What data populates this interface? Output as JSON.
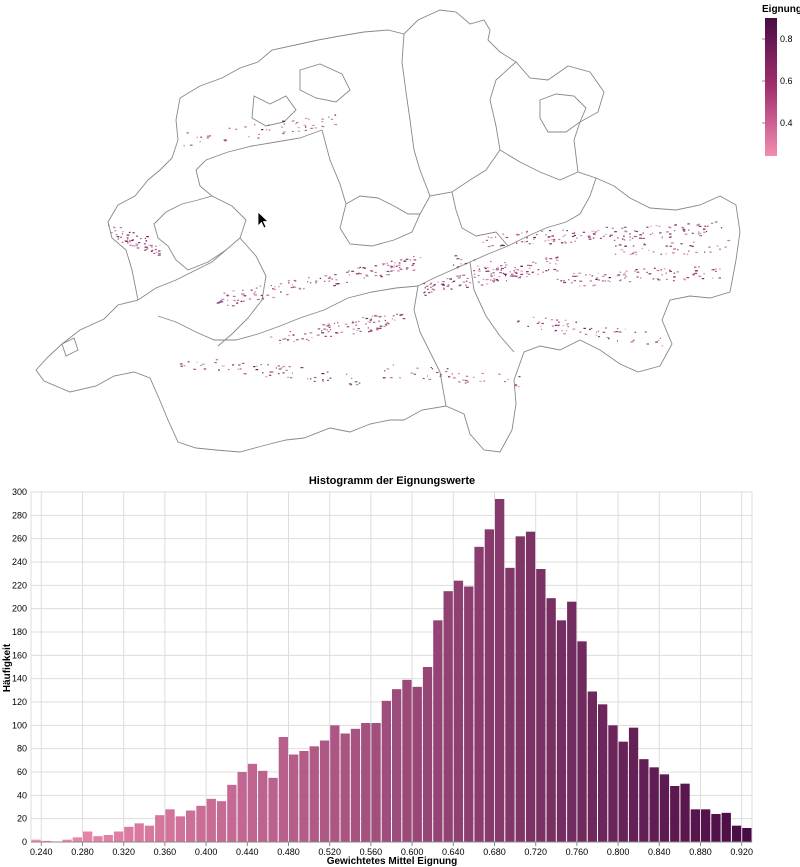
{
  "legend": {
    "title": "Eignung",
    "ticks": [
      "0.8",
      "0.6",
      "0.4"
    ],
    "color_low": "#f28cb0",
    "color_high": "#4a0c45",
    "range": [
      0.24,
      0.92
    ]
  },
  "map": {
    "boundary_color": "#888888",
    "pixel_colors": [
      "#7a1d60",
      "#a2306e",
      "#c8618e",
      "#5a1252"
    ]
  },
  "cursor": {
    "icon": "arrow-cursor-icon"
  },
  "chart_data": {
    "type": "bar",
    "title": "Histogramm der Eignungswerte",
    "xlabel": "Gewichtetes Mittel Eignung",
    "ylabel": "Häufigkeit",
    "bin_start": 0.23,
    "bin_width": 0.01,
    "values": [
      2,
      1,
      0,
      2,
      4,
      9,
      5,
      6,
      9,
      13,
      16,
      14,
      23,
      28,
      22,
      27,
      31,
      37,
      35,
      49,
      60,
      67,
      61,
      55,
      90,
      75,
      78,
      82,
      87,
      100,
      93,
      97,
      102,
      102,
      121,
      131,
      139,
      133,
      150,
      190,
      215,
      224,
      219,
      253,
      268,
      294,
      235,
      262,
      266,
      234,
      209,
      190,
      206,
      172,
      129,
      118,
      100,
      86,
      98,
      71,
      64,
      58,
      48,
      50,
      28,
      28,
      24,
      25,
      14,
      12
    ],
    "ylim": [
      0,
      300
    ],
    "yticks": [
      "0",
      "20",
      "40",
      "60",
      "80",
      "100",
      "120",
      "140",
      "160",
      "180",
      "200",
      "220",
      "240",
      "260",
      "280",
      "300"
    ],
    "xticks": [
      "0.240",
      "0.280",
      "0.320",
      "0.360",
      "0.400",
      "0.440",
      "0.480",
      "0.520",
      "0.560",
      "0.600",
      "0.640",
      "0.680",
      "0.720",
      "0.760",
      "0.800",
      "0.840",
      "0.880",
      "0.920"
    ],
    "bar_color_low": "#f28cb0",
    "bar_color_high": "#4a0c45",
    "grid": true
  }
}
